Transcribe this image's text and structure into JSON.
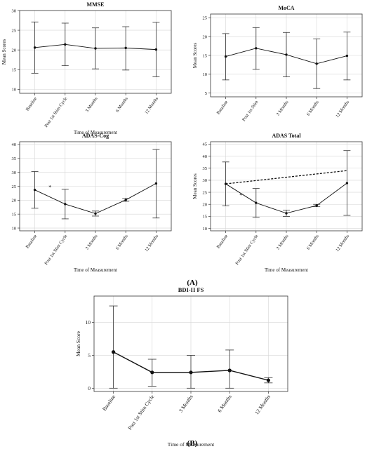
{
  "panel_labels": {
    "a": "(A)",
    "b": "(B)"
  },
  "chart_data": [
    {
      "type": "line",
      "title": "MMSE",
      "xlabel": "Time of Measurement",
      "ylabel": "Mean Scores",
      "categories": [
        "Baseline",
        "Post 1st Stim Cycle",
        "3 Months",
        "6 Months",
        "12 Months"
      ],
      "ylim": [
        9,
        30
      ],
      "yticks": [
        10,
        15,
        20,
        25,
        30
      ],
      "grid": true,
      "series": [
        {
          "values": [
            20.6,
            21.4,
            20.4,
            20.5,
            20.1
          ],
          "err_low": [
            14.1,
            16.0,
            15.2,
            14.9,
            13.2
          ],
          "err_high": [
            27.1,
            26.8,
            25.6,
            25.9,
            27.0
          ],
          "style": "solid"
        }
      ]
    },
    {
      "type": "line",
      "title": "MoCA",
      "xlabel": "",
      "ylabel": "Mean Scores",
      "categories": [
        "Baseline",
        "Post 1st Stim",
        "3 Months",
        "6 Months",
        "12 Months"
      ],
      "ylim": [
        4,
        26
      ],
      "yticks": [
        5,
        10,
        15,
        20,
        25
      ],
      "grid": true,
      "series": [
        {
          "values": [
            14.7,
            16.9,
            15.2,
            12.8,
            14.9
          ],
          "err_low": [
            8.5,
            11.3,
            9.3,
            6.2,
            8.5
          ],
          "err_high": [
            20.8,
            22.4,
            21.1,
            19.4,
            21.2
          ],
          "style": "solid"
        }
      ]
    },
    {
      "type": "line",
      "title": "ADAS-Cog",
      "xlabel": "Time of Measurement",
      "ylabel": "",
      "categories": [
        "Baseline",
        "Post 1st Stim Cycle",
        "3 Months",
        "6 Months",
        "12 Months"
      ],
      "ylim": [
        9,
        41
      ],
      "yticks": [
        10,
        15,
        20,
        25,
        30,
        35,
        40
      ],
      "grid": true,
      "annotations": [
        {
          "text": "*",
          "x": 0.5,
          "y": 24
        }
      ],
      "series": [
        {
          "values": [
            23.7,
            18.6,
            15.2,
            20.1,
            26.0
          ],
          "err_low": [
            17.1,
            13.3,
            14.3,
            19.6,
            13.6
          ],
          "err_high": [
            30.3,
            23.9,
            16.1,
            20.6,
            38.2
          ],
          "style": "solid"
        }
      ]
    },
    {
      "type": "line",
      "title": "ADAS Total",
      "xlabel": "Time of Measurement",
      "ylabel": "Mean Scores",
      "categories": [
        "Baseline",
        "Post 1st Stim Cycle",
        "3 Months",
        "6 Months",
        "12 Months"
      ],
      "ylim": [
        9,
        46
      ],
      "yticks": [
        10,
        15,
        20,
        25,
        30,
        35,
        40,
        45
      ],
      "grid": true,
      "annotations": [
        {
          "text": "*",
          "x": 0.5,
          "y": 23
        }
      ],
      "series": [
        {
          "values": [
            28.5,
            20.6,
            16.3,
            19.5,
            28.8
          ],
          "err_low": [
            19.4,
            14.6,
            15.0,
            19.0,
            15.4
          ],
          "err_high": [
            37.6,
            26.6,
            17.6,
            20.0,
            42.3
          ],
          "style": "solid"
        },
        {
          "x": [
            0,
            4
          ],
          "values": [
            28.5,
            34.0
          ],
          "style": "dashed"
        }
      ]
    },
    {
      "type": "line",
      "title": "BDI-II FS",
      "xlabel": "Time of Measurement",
      "ylabel": "Mean Score",
      "categories": [
        "Baseline",
        "Post 1st Stim Cycle",
        "3 Months",
        "6 Months",
        "12 Months"
      ],
      "ylim": [
        -0.5,
        14
      ],
      "yticks": [
        0,
        5,
        10
      ],
      "grid": true,
      "series": [
        {
          "values": [
            5.5,
            2.4,
            2.4,
            2.7,
            1.2
          ],
          "err_low": [
            0,
            0.3,
            0,
            0,
            0.8
          ],
          "err_high": [
            12.5,
            4.4,
            5.0,
            5.8,
            1.6
          ],
          "style": "solid"
        }
      ]
    }
  ]
}
